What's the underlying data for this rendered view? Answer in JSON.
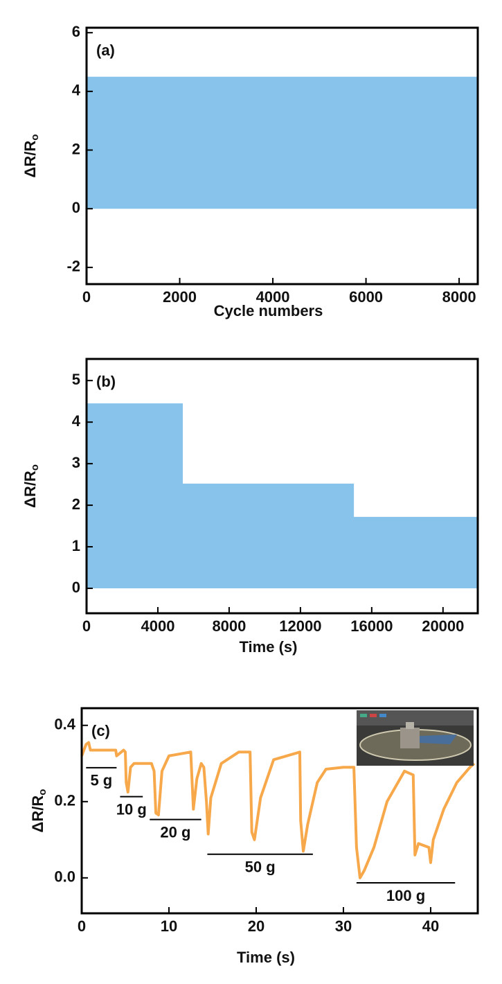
{
  "chart_data": [
    {
      "type": "band",
      "panel_label": "(a)",
      "ylabel": "ΔR/R",
      "ylabel_sub": "o",
      "xlabel": "Cycle numbers",
      "x": [
        0,
        8400
      ],
      "upper": [
        4.5,
        4.5
      ],
      "lower": [
        0,
        0
      ],
      "color": "#87c3ea",
      "xlim": [
        0,
        8400
      ],
      "ylim": [
        -2.57,
        6.17
      ],
      "xticks": [
        0,
        2000,
        4000,
        6000,
        8000
      ],
      "yticks": [
        -2,
        0,
        2,
        4,
        6
      ]
    },
    {
      "type": "band",
      "panel_label": "(b)",
      "ylabel": "ΔR/R",
      "ylabel_sub": "o",
      "xlabel": "Time (s)",
      "x": [
        0,
        5400,
        5400,
        15000,
        15000,
        21950
      ],
      "upper": [
        4.45,
        4.45,
        2.52,
        2.52,
        1.72,
        1.72
      ],
      "lower": [
        0,
        0,
        0,
        0,
        0,
        0
      ],
      "color": "#87c3ea",
      "xlim": [
        0,
        21950
      ],
      "ylim": [
        -0.6,
        5.52
      ],
      "xticks": [
        0,
        4000,
        8000,
        12000,
        16000,
        20000
      ],
      "yticks": [
        0,
        1,
        2,
        3,
        4,
        5
      ]
    },
    {
      "type": "line",
      "panel_label": "(c)",
      "ylabel": "ΔR/R",
      "ylabel_sub": "o",
      "xlabel": "Time (s)",
      "color": "#f7a84a",
      "x": [
        0,
        0.5,
        0.8,
        1,
        3.9,
        4,
        4.8,
        5,
        5.1,
        5.3,
        5.6,
        6,
        8,
        8.3,
        8.5,
        8.8,
        9.2,
        10,
        12.5,
        12.8,
        13.2,
        13.7,
        14,
        14.3,
        14.5,
        14.8,
        16,
        18,
        19.3,
        19.5,
        19.8,
        20.5,
        22,
        25,
        25.1,
        25.4,
        25.9,
        27,
        28,
        30,
        31.2,
        31.5,
        31.9,
        32.4,
        33.5,
        35,
        37,
        38,
        38.2,
        38.6,
        39.8,
        40,
        40.3,
        41.5,
        43,
        44.5,
        45
      ],
      "values": [
        0.32,
        0.35,
        0.355,
        0.335,
        0.335,
        0.32,
        0.335,
        0.33,
        0.25,
        0.225,
        0.29,
        0.3,
        0.3,
        0.28,
        0.17,
        0.165,
        0.28,
        0.32,
        0.33,
        0.18,
        0.26,
        0.3,
        0.29,
        0.2,
        0.115,
        0.21,
        0.3,
        0.33,
        0.33,
        0.12,
        0.1,
        0.21,
        0.31,
        0.33,
        0.15,
        0.07,
        0.14,
        0.25,
        0.285,
        0.29,
        0.29,
        0.08,
        0.0,
        0.02,
        0.08,
        0.2,
        0.28,
        0.27,
        0.06,
        0.09,
        0.08,
        0.04,
        0.1,
        0.18,
        0.25,
        0.29,
        0.3
      ],
      "annotations": [
        {
          "text": "5 g",
          "x": [
            0.5,
            4
          ],
          "y": 0.289
        },
        {
          "text": "10 g",
          "x": [
            4.4,
            7
          ],
          "y": 0.213
        },
        {
          "text": "20 g",
          "x": [
            7.8,
            13.7
          ],
          "y": 0.153
        },
        {
          "text": "50 g",
          "x": [
            14.4,
            26.5
          ],
          "y": 0.062
        },
        {
          "text": "100 g",
          "x": [
            31.5,
            42.8
          ],
          "y": -0.013
        }
      ],
      "xlim": [
        0,
        45.4
      ],
      "ylim": [
        -0.093,
        0.445
      ],
      "xticks": [
        0,
        10,
        20,
        30,
        40
      ],
      "yticks": [
        {
          "value": 0,
          "label": "0.0"
        },
        0.2,
        0.4
      ]
    }
  ]
}
